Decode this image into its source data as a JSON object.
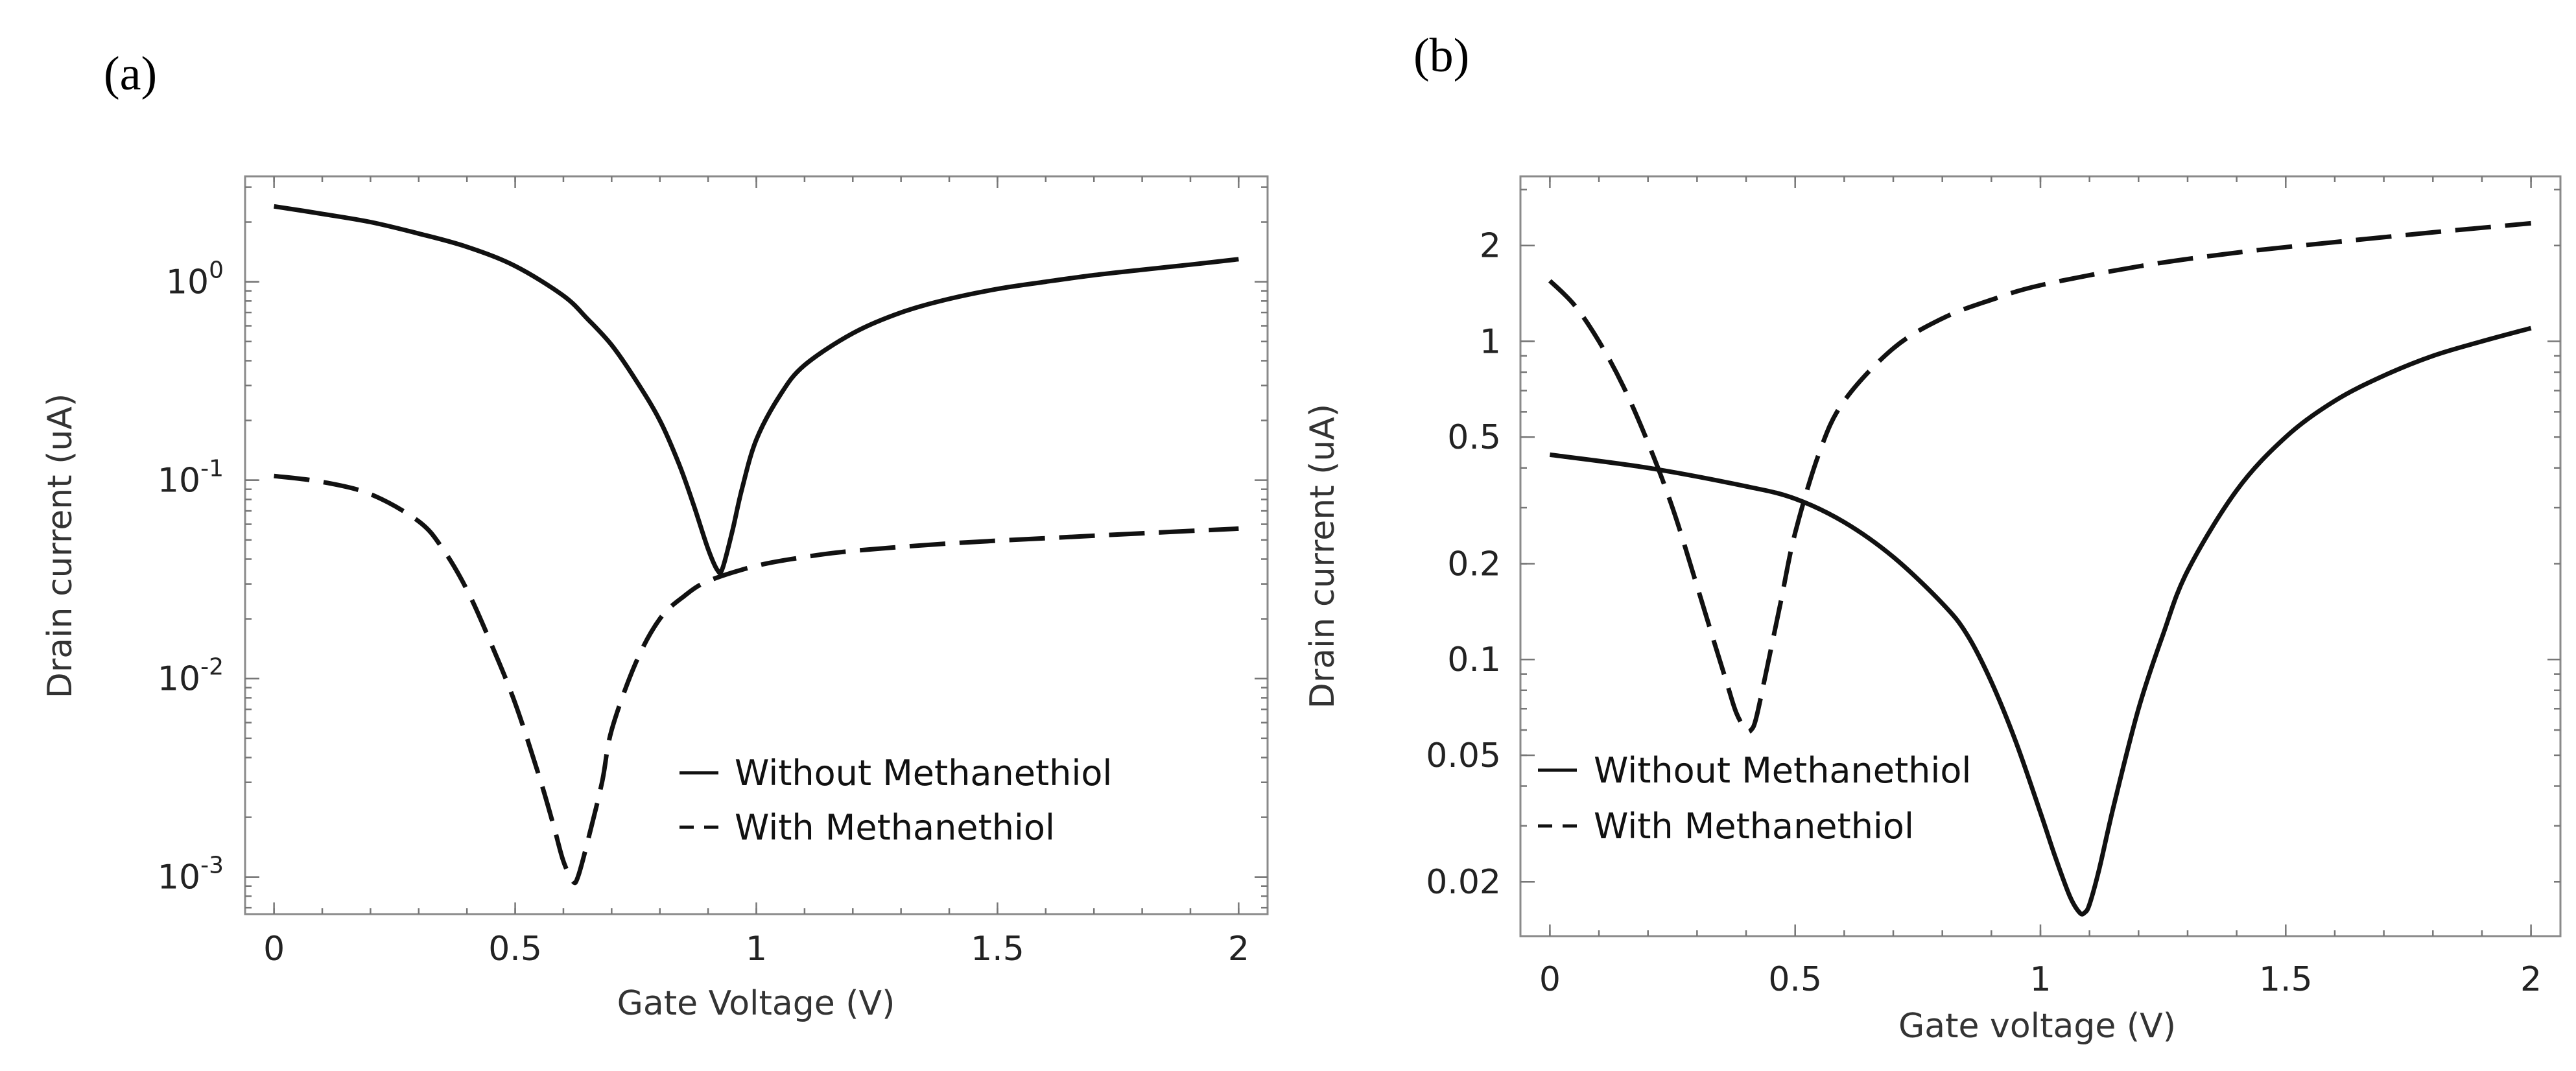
{
  "chart_data": [
    {
      "type": "line",
      "panel_label": "(a)",
      "xlabel": "Gate Voltage (V)",
      "ylabel": "Drain current (uA)",
      "yscale": "log",
      "xlim": [
        -0.06,
        2.06
      ],
      "ylim": [
        0.00065,
        3.4
      ],
      "xticks": [
        0,
        0.5,
        1,
        1.5,
        2
      ],
      "xtick_labels": [
        "0",
        "0.5",
        "1",
        "1.5",
        "2"
      ],
      "yticks": [
        1,
        0.1,
        0.01,
        0.001
      ],
      "ytick_labels": [
        {
          "base": "10",
          "exp": "0"
        },
        {
          "base": "10",
          "exp": "-1"
        },
        {
          "base": "10",
          "exp": "-2"
        },
        {
          "base": "10",
          "exp": "-3"
        }
      ],
      "legend": {
        "position": "lower-right",
        "entries": [
          "Without Methanethiol",
          "With Methanethiol"
        ]
      },
      "series": [
        {
          "name": "Without Methanethiol",
          "style": "solid",
          "x": [
            0,
            0.1,
            0.2,
            0.3,
            0.4,
            0.5,
            0.6,
            0.65,
            0.7,
            0.75,
            0.8,
            0.84,
            0.87,
            0.9,
            0.92,
            0.93,
            0.95,
            0.97,
            1.0,
            1.05,
            1.1,
            1.2,
            1.3,
            1.4,
            1.5,
            1.6,
            1.7,
            1.8,
            1.9,
            2.0
          ],
          "y": [
            2.4,
            2.2,
            2.0,
            1.75,
            1.5,
            1.2,
            0.85,
            0.65,
            0.48,
            0.32,
            0.2,
            0.12,
            0.075,
            0.045,
            0.035,
            0.036,
            0.055,
            0.09,
            0.16,
            0.27,
            0.38,
            0.55,
            0.7,
            0.82,
            0.92,
            1.0,
            1.08,
            1.15,
            1.22,
            1.3
          ]
        },
        {
          "name": "With Methanethiol",
          "style": "dashed",
          "x": [
            0,
            0.1,
            0.2,
            0.3,
            0.35,
            0.4,
            0.45,
            0.5,
            0.55,
            0.58,
            0.6,
            0.62,
            0.63,
            0.65,
            0.68,
            0.7,
            0.75,
            0.8,
            0.85,
            0.9,
            1.0,
            1.1,
            1.2,
            1.4,
            1.6,
            1.8,
            2.0
          ],
          "y": [
            0.105,
            0.098,
            0.085,
            0.062,
            0.045,
            0.028,
            0.015,
            0.0075,
            0.0032,
            0.0018,
            0.0012,
            0.00095,
            0.001,
            0.0015,
            0.003,
            0.0055,
            0.012,
            0.02,
            0.026,
            0.031,
            0.037,
            0.041,
            0.044,
            0.048,
            0.051,
            0.054,
            0.057
          ]
        }
      ]
    },
    {
      "type": "line",
      "panel_label": "(b)",
      "xlabel": "Gate voltage (V)",
      "ylabel": "Drain current (uA)",
      "yscale": "log",
      "xlim": [
        -0.06,
        2.06
      ],
      "ylim": [
        0.0135,
        3.3
      ],
      "xticks": [
        0,
        0.5,
        1,
        1.5,
        2
      ],
      "xtick_labels": [
        "0",
        "0.5",
        "1",
        "1.5",
        "2"
      ],
      "yticks": [
        2,
        1,
        0.5,
        0.2,
        0.1,
        0.05,
        0.02
      ],
      "ytick_labels": [
        "2",
        "1",
        "0.5",
        "0.2",
        "0.1",
        "0.05",
        "0.02"
      ],
      "legend": {
        "position": "lower-left",
        "entries": [
          "Without Methanethiol",
          "With Methanethiol"
        ]
      },
      "series": [
        {
          "name": "Without Methanethiol",
          "style": "solid",
          "x": [
            0,
            0.2,
            0.4,
            0.5,
            0.6,
            0.7,
            0.8,
            0.85,
            0.9,
            0.95,
            1.0,
            1.03,
            1.06,
            1.08,
            1.09,
            1.1,
            1.12,
            1.15,
            1.2,
            1.25,
            1.3,
            1.4,
            1.5,
            1.6,
            1.7,
            1.8,
            1.9,
            2.0
          ],
          "y": [
            0.44,
            0.4,
            0.35,
            0.32,
            0.27,
            0.21,
            0.15,
            0.12,
            0.085,
            0.055,
            0.033,
            0.024,
            0.018,
            0.016,
            0.016,
            0.017,
            0.022,
            0.035,
            0.07,
            0.12,
            0.19,
            0.34,
            0.5,
            0.65,
            0.78,
            0.9,
            1.0,
            1.1
          ]
        },
        {
          "name": "With Methanethiol",
          "style": "dashed",
          "x": [
            0,
            0.05,
            0.1,
            0.15,
            0.2,
            0.25,
            0.3,
            0.33,
            0.36,
            0.38,
            0.4,
            0.41,
            0.42,
            0.44,
            0.47,
            0.5,
            0.55,
            0.6,
            0.7,
            0.8,
            0.9,
            1.0,
            1.2,
            1.4,
            1.6,
            1.8,
            2.0
          ],
          "y": [
            1.55,
            1.3,
            1.0,
            0.72,
            0.48,
            0.3,
            0.17,
            0.12,
            0.085,
            0.068,
            0.06,
            0.06,
            0.065,
            0.09,
            0.15,
            0.25,
            0.45,
            0.65,
            0.95,
            1.18,
            1.35,
            1.5,
            1.72,
            1.9,
            2.05,
            2.2,
            2.35
          ]
        }
      ]
    }
  ]
}
